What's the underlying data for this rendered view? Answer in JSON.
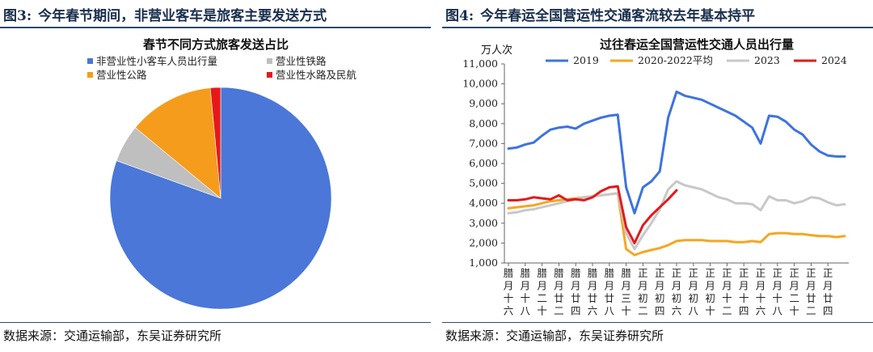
{
  "left_panel": {
    "figure_number": "图3:",
    "figure_title": "今年春节期间，非营业客车是旅客主要发送方式",
    "source": "数据来源：交通运输部，东吴证券研究所"
  },
  "right_panel": {
    "figure_number": "图4:",
    "figure_title": "今年春运全国营运性交通客流较去年基本持平",
    "source": "数据来源：交通运输部，东吴证券研究所"
  },
  "chart_data": [
    {
      "type": "pie",
      "title": "春节不同方式旅客发送占比",
      "labels": [
        "非营业性小客车人员出行量",
        "营业性铁路",
        "营业性公路",
        "营业性水路及民航"
      ],
      "values": [
        80.5,
        5.5,
        12.5,
        1.5
      ],
      "colors": [
        "#4a77d8",
        "#bfbfbf",
        "#f59c1c",
        "#e81818"
      ]
    },
    {
      "type": "line",
      "title": "过往春运全国营运性交通人员出行量",
      "unit_label": "万人次",
      "ylim": [
        1000,
        11000
      ],
      "yticks": [
        "1,000",
        "2,000",
        "3,000",
        "4,000",
        "5,000",
        "6,000",
        "7,000",
        "8,000",
        "9,000",
        "10,000",
        "11,000"
      ],
      "ytick_values": [
        1000,
        2000,
        3000,
        4000,
        5000,
        6000,
        7000,
        8000,
        9000,
        10000,
        11000
      ],
      "x_count": 41,
      "xtick_labels": [
        "腊月十六",
        "腊月十八",
        "腊月二十",
        "腊月廿二",
        "腊月廿四",
        "腊月廿六",
        "腊月廿八",
        "腊月三十",
        "正月初二",
        "正月初四",
        "正月初六",
        "正月初八",
        "正月初十",
        "正月十二",
        "正月十四",
        "正月十六",
        "正月十八",
        "正月二十",
        "正月廿二",
        "正月廿四"
      ],
      "series": [
        {
          "name": "2019",
          "color": "#3d73e0",
          "values": [
            6750,
            6800,
            6950,
            7050,
            7400,
            7700,
            7800,
            7850,
            7750,
            8000,
            8150,
            8300,
            8400,
            8450,
            4800,
            3500,
            4800,
            5100,
            5600,
            8300,
            9600,
            9400,
            9300,
            9200,
            9000,
            8800,
            8600,
            8400,
            8100,
            7800,
            7000,
            8400,
            8350,
            8100,
            7700,
            7450,
            6950,
            6600,
            6400,
            6350,
            6350
          ]
        },
        {
          "name": "2020-2022平均",
          "color": "#f5a623",
          "values": [
            3750,
            3800,
            3850,
            3900,
            4000,
            4100,
            4150,
            4200,
            4250,
            4300,
            4350,
            4400,
            4450,
            4500,
            1700,
            1400,
            1550,
            1650,
            1750,
            1900,
            2100,
            2150,
            2150,
            2150,
            2100,
            2100,
            2100,
            2050,
            2050,
            2100,
            2050,
            2450,
            2500,
            2500,
            2450,
            2450,
            2400,
            2350,
            2350,
            2300,
            2350
          ]
        },
        {
          "name": "2023",
          "color": "#c8c8c8",
          "values": [
            3500,
            3550,
            3650,
            3700,
            3800,
            3900,
            4000,
            4100,
            4200,
            4300,
            4350,
            4400,
            4450,
            4500,
            2500,
            1700,
            2400,
            3000,
            3700,
            4700,
            5100,
            4900,
            4800,
            4700,
            4500,
            4300,
            4200,
            4000,
            4000,
            3950,
            3650,
            4350,
            4150,
            4150,
            4000,
            4100,
            4300,
            4250,
            4050,
            3900,
            3950
          ]
        },
        {
          "name": "2024",
          "color": "#e31a1c",
          "values": [
            4150,
            4150,
            4200,
            4300,
            4250,
            4200,
            4400,
            4150,
            4200,
            4150,
            4300,
            4600,
            4800,
            4850,
            2800,
            2000,
            2900,
            3400,
            3800,
            4200,
            4650
          ]
        }
      ]
    }
  ]
}
